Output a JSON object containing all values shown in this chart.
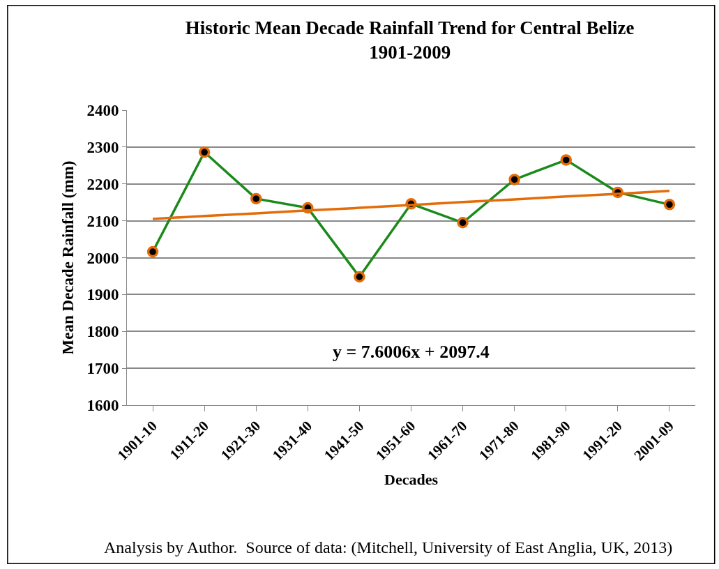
{
  "chart_data": {
    "type": "line",
    "title": "Historic Mean Decade Rainfall Trend for Central Belize\n1901-2009",
    "xlabel": "Decades",
    "ylabel": "Mean Decade Rainfall (mm)",
    "categories": [
      "1901-10",
      "1911-20",
      "1921-30",
      "1931-40",
      "1941-50",
      "1951-60",
      "1961-70",
      "1971-80",
      "1981-90",
      "1991-20",
      "2001-09"
    ],
    "series": [
      {
        "color": "#1a8a1a",
        "marker": "circle",
        "values": [
          2016,
          2286,
          2160,
          2135,
          1948,
          2146,
          2095,
          2212,
          2265,
          2177,
          2144
        ]
      },
      {
        "type": "line",
        "color": "#e36c09",
        "marker": "none",
        "values": [
          2105,
          2113,
          2120,
          2128,
          2135,
          2143,
          2151,
          2158,
          2166,
          2173,
          2181
        ]
      }
    ],
    "ylim": [
      1600,
      2400
    ],
    "yticks": [
      1600,
      1700,
      1800,
      1900,
      2000,
      2100,
      2200,
      2300,
      2400
    ],
    "grid": "y",
    "annotations": [
      "y = 7.6006x + 2097.4",
      "Analysis by Author.  Source of data: (Mitchell, University of East Anglia, UK, 2013)"
    ]
  }
}
